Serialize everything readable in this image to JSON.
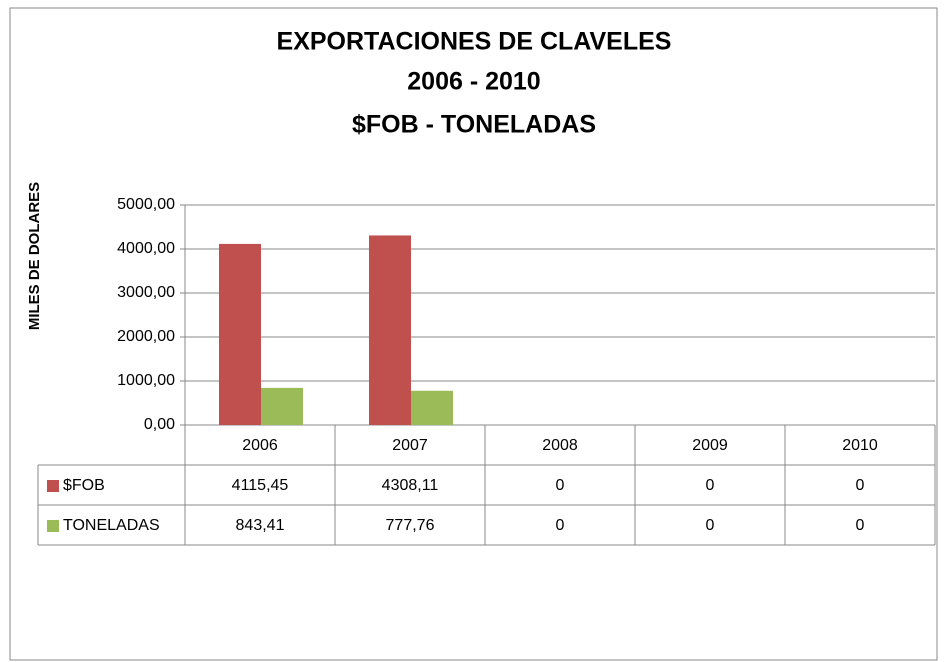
{
  "chart_data": {
    "type": "bar",
    "title": [
      "EXPORTACIONES DE CLAVELES",
      "2006 - 2010",
      "$FOB - TONELADAS"
    ],
    "y_label": "MILES DE DOLARES",
    "categories": [
      "2006",
      "2007",
      "2008",
      "2009",
      "2010"
    ],
    "series": [
      {
        "name": "$FOB",
        "color": "#c0504d",
        "values": [
          4115.45,
          4308.11,
          0,
          0,
          0
        ],
        "value_labels": [
          "4115,45",
          "4308,11",
          "0",
          "0",
          "0"
        ]
      },
      {
        "name": "TONELADAS",
        "color": "#9bbb59",
        "values": [
          843.41,
          777.76,
          0,
          0,
          0
        ],
        "value_labels": [
          "843,41",
          "777,76",
          "0",
          "0",
          "0"
        ]
      }
    ],
    "ylim": [
      0,
      5000
    ],
    "yticks": [
      {
        "value": 0,
        "label": "0,00"
      },
      {
        "value": 1000,
        "label": "1000,00"
      },
      {
        "value": 2000,
        "label": "2000,00"
      },
      {
        "value": 3000,
        "label": "3000,00"
      },
      {
        "value": 4000,
        "label": "4000,00"
      },
      {
        "value": 5000,
        "label": "5000,00"
      }
    ],
    "grid": true
  }
}
